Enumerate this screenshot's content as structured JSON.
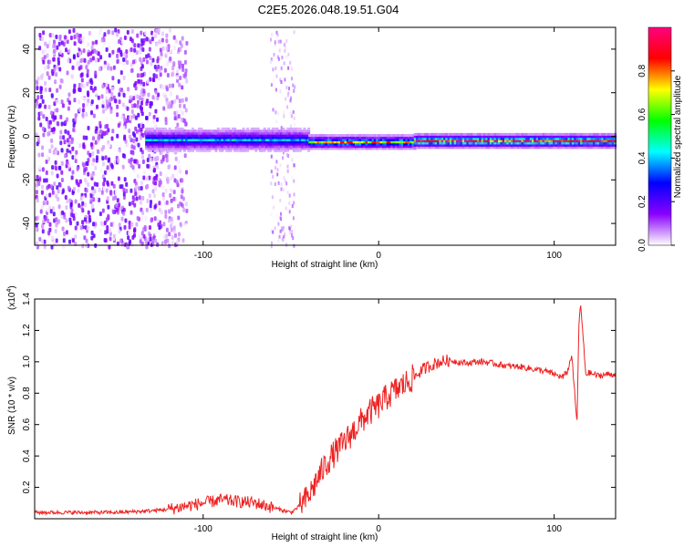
{
  "title": "C2E5.2026.048.19.51.G04",
  "colors": {
    "snr_line": "#ee2222",
    "spectrogram_bg": "#ffffff"
  },
  "chart_data": [
    {
      "type": "heatmap",
      "name": "spectrogram",
      "xlabel": "Height of straight line (km)",
      "ylabel": "Frequency (Hz)",
      "xlim": [
        -196,
        135
      ],
      "ylim": [
        -50,
        50
      ],
      "xticks": [
        -100,
        0,
        100
      ],
      "yticks": [
        -40,
        -20,
        0,
        20,
        40
      ],
      "colorbar": {
        "label": "Normalized spectral amplitude",
        "range": [
          0.0,
          1.0
        ],
        "ticks": [
          "0.0",
          "0.2",
          "0.4",
          "0.6",
          "0.8"
        ],
        "tick_values": [
          0.0,
          0.2,
          0.4,
          0.6,
          0.8
        ],
        "colormap": [
          "#ffffff",
          "#8a00ff",
          "#0000ff",
          "#00ffff",
          "#00ff00",
          "#ffff00",
          "#ff0000",
          "#ff0080"
        ]
      },
      "carrier_segments": [
        {
          "x_start": -133,
          "x_end": -40,
          "level": 0.45,
          "freq_hz": -1.5
        },
        {
          "x_start": -40,
          "x_end": 20,
          "level": 0.8,
          "freq_hz": -2.5
        },
        {
          "x_start": 20,
          "x_end": 135,
          "level": 0.95,
          "freq_hz": -2.0
        }
      ],
      "noise_region": {
        "x_start": -196,
        "x_end": -120,
        "level": 0.2
      }
    },
    {
      "type": "line",
      "name": "snr",
      "xlabel": "Height of straight line (km)",
      "ylabel": "SNR (10 * v/v)",
      "yscale_label": "(x10",
      "yscale_exponent": "4",
      "yscale_suffix": ")",
      "xlim": [
        -196,
        135
      ],
      "ylim": [
        0,
        1.4
      ],
      "xticks": [
        -100,
        0,
        100
      ],
      "yticks": [
        0.2,
        0.4,
        0.6,
        0.8,
        1.0,
        1.2,
        1.4
      ],
      "ytick_labels": [
        "0.2",
        "0.4",
        "0.6",
        "0.8",
        "1.0",
        "1.2",
        "1.4"
      ],
      "series": [
        {
          "name": "SNR",
          "x": [
            -196,
            -170,
            -150,
            -130,
            -120,
            -110,
            -100,
            -90,
            -80,
            -70,
            -60,
            -50,
            -45,
            -40,
            -35,
            -30,
            -25,
            -20,
            -15,
            -10,
            -5,
            0,
            5,
            10,
            15,
            20,
            25,
            30,
            35,
            40,
            45,
            50,
            55,
            60,
            65,
            70,
            75,
            80,
            85,
            90,
            95,
            100,
            105,
            108,
            110,
            112,
            113,
            114,
            115,
            118,
            120,
            125,
            130,
            135
          ],
          "y": [
            0.04,
            0.04,
            0.04,
            0.05,
            0.06,
            0.08,
            0.1,
            0.12,
            0.11,
            0.1,
            0.07,
            0.04,
            0.08,
            0.14,
            0.25,
            0.35,
            0.42,
            0.48,
            0.55,
            0.62,
            0.68,
            0.72,
            0.78,
            0.82,
            0.86,
            0.9,
            0.95,
            0.98,
            1.0,
            1.01,
            1.0,
            0.99,
            1.0,
            1.0,
            0.99,
            0.98,
            0.97,
            0.97,
            0.96,
            0.95,
            0.94,
            0.92,
            0.9,
            0.95,
            1.05,
            0.75,
            0.6,
            1.2,
            1.38,
            0.92,
            0.93,
            0.91,
            0.92,
            0.92
          ]
        }
      ]
    }
  ]
}
